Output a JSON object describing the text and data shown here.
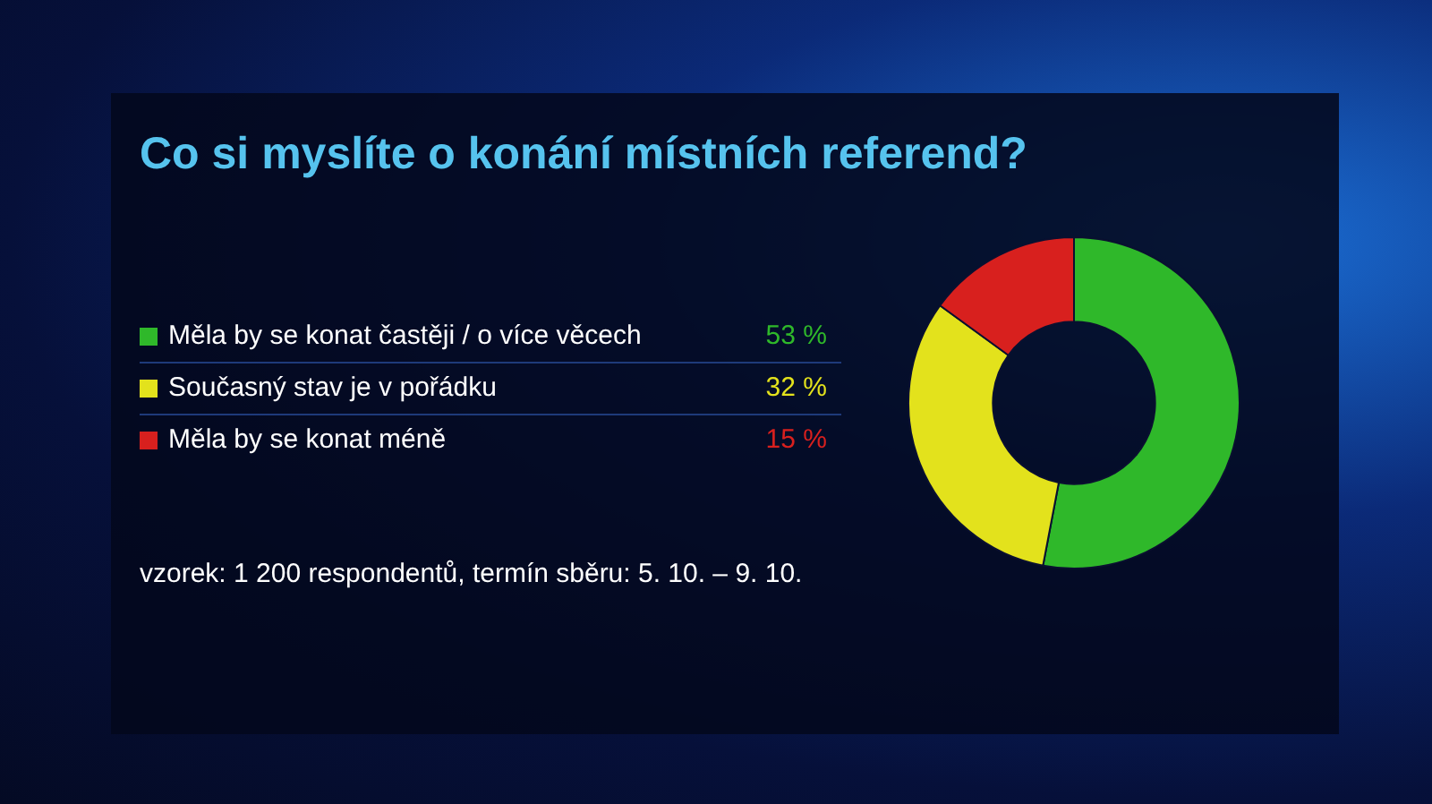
{
  "chart_data": {
    "type": "donut",
    "title": "Co si myslíte o konání místních referend?",
    "categories": [
      "Měla by se konat častěji / o více věcech",
      "Současný stav je v pořádku",
      "Měla by se konat méně"
    ],
    "values": [
      53,
      32,
      15
    ],
    "colors": [
      "#2fb82a",
      "#e3e21c",
      "#d8201e"
    ],
    "value_labels": [
      "53 %",
      "32 %",
      "15 %"
    ],
    "legend": "left",
    "annotations": [
      "vzorek: 1 200 respondentů, termín sběru: 5. 10. – 9. 10."
    ]
  }
}
